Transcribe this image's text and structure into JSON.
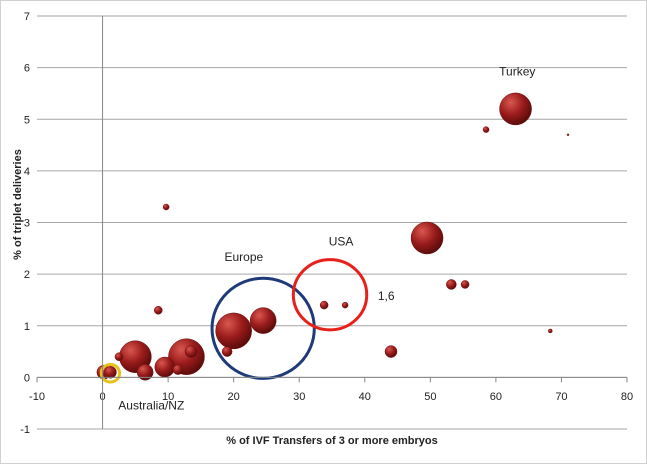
{
  "chart_data": {
    "type": "scatter",
    "subtype": "bubble",
    "title": "",
    "xlabel": "% of IVF Transfers of 3 or more embryos",
    "ylabel": "% of triplet deliveries",
    "xlim": [
      -10,
      80
    ],
    "ylim": [
      -1,
      7
    ],
    "x_ticks": [
      -10,
      0,
      10,
      20,
      30,
      40,
      50,
      60,
      70,
      80
    ],
    "y_ticks": [
      -1,
      0,
      1,
      2,
      3,
      4,
      5,
      6,
      7
    ],
    "grid": "horizontal",
    "bubble_color": "#9b1c1c",
    "points": [
      {
        "x": 63,
        "y": 5.2,
        "size": 16
      },
      {
        "x": 58.5,
        "y": 4.8,
        "size": 3
      },
      {
        "x": 71,
        "y": 4.7,
        "size": 1
      },
      {
        "x": 9.7,
        "y": 3.3,
        "size": 3
      },
      {
        "x": 49.5,
        "y": 2.7,
        "size": 16
      },
      {
        "x": 53.2,
        "y": 1.8,
        "size": 5
      },
      {
        "x": 55.3,
        "y": 1.8,
        "size": 4
      },
      {
        "x": 33.8,
        "y": 1.4,
        "size": 4
      },
      {
        "x": 37,
        "y": 1.4,
        "size": 3
      },
      {
        "x": 8.5,
        "y": 1.3,
        "size": 4
      },
      {
        "x": 20,
        "y": 0.9,
        "size": 18
      },
      {
        "x": 24.5,
        "y": 1.1,
        "size": 13
      },
      {
        "x": 68.3,
        "y": 0.9,
        "size": 2
      },
      {
        "x": 19,
        "y": 0.5,
        "size": 5
      },
      {
        "x": 44,
        "y": 0.5,
        "size": 6
      },
      {
        "x": 5,
        "y": 0.4,
        "size": 16
      },
      {
        "x": 12.8,
        "y": 0.4,
        "size": 18
      },
      {
        "x": 13.5,
        "y": 0.5,
        "size": 6
      },
      {
        "x": 2.5,
        "y": 0.4,
        "size": 4
      },
      {
        "x": 9.5,
        "y": 0.2,
        "size": 10
      },
      {
        "x": 11.5,
        "y": 0.15,
        "size": 5
      },
      {
        "x": 6.5,
        "y": 0.1,
        "size": 8
      },
      {
        "x": 0.2,
        "y": 0.1,
        "size": 7
      },
      {
        "x": 1.2,
        "y": 0.1,
        "size": 6
      }
    ],
    "highlights": [
      {
        "label": "Europe",
        "x": 24.5,
        "y": 0.95,
        "rx": 7.8,
        "ry": 0.97,
        "color": "#1f3a7a"
      },
      {
        "label": "USA",
        "x": 34.7,
        "y": 1.6,
        "rx": 5.6,
        "ry": 0.68,
        "color": "#e8201a",
        "value_label": "1,6"
      },
      {
        "label": "Australia/NZ",
        "x": 1.2,
        "y": 0.08,
        "rx": 1.4,
        "ry": 0.17,
        "color": "#e6c21a"
      }
    ],
    "annotations": [
      {
        "text": "Turkey",
        "x": 60.5,
        "y": 5.85
      },
      {
        "text": "USA",
        "x": 34.5,
        "y": 2.55
      },
      {
        "text": "Europe",
        "x": 18.6,
        "y": 2.25
      },
      {
        "text": "1,6",
        "x": 42,
        "y": 1.5
      },
      {
        "text": "Australia/NZ",
        "x": 2.4,
        "y": -0.62
      }
    ]
  }
}
